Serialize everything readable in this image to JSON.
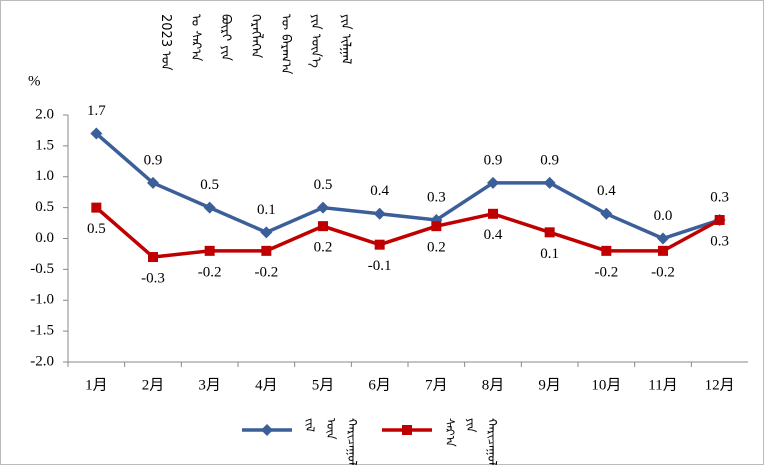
{
  "chart_data": {
    "type": "line",
    "title": "2023 ᠣᠨ ᠤ ᠰᠠᠷ᠎ᠠ ᠪᠦᠷᠢ ᠶᠢᠨ ᠬᠡᠷᠡᠭᠯᠡᠭᠡᠨ ᠦ ᠪᠠᠷᠠᠭ᠎ᠠ ᠶᠢᠨ ᠦᠨ᠎ᠡ ᠶᠢᠨ ᠢᠯᠭᠠᠯ",
    "y_label": "%",
    "categories": [
      "1月",
      "2月",
      "3月",
      "4月",
      "5月",
      "6月",
      "7月",
      "8月",
      "9月",
      "10月",
      "11月",
      "12月"
    ],
    "series": [
      {
        "name": "ᠵᠢᠯ ᠦᠨ ᠬᠠᠷᠢᠴᠠᠭᠤᠯᠠᠯᠲᠠ",
        "color": "#3b5f99",
        "values": [
          1.7,
          0.9,
          0.5,
          0.1,
          0.5,
          0.4,
          0.3,
          0.9,
          0.9,
          0.4,
          0.0,
          0.3
        ],
        "value_labels": [
          "1.7",
          "0.9",
          "0.5",
          "0.1",
          "0.5",
          "0.4",
          "0.3",
          "0.9",
          "0.9",
          "0.4",
          "0.0",
          "0.3"
        ]
      },
      {
        "name": "ᠰᠠᠷ᠎ᠠ ᠶᠢᠨ ᠬᠠᠷᠢᠴᠠᠭᠤᠯᠠᠯᠲᠠ",
        "color": "#c00000",
        "values": [
          0.5,
          -0.3,
          -0.2,
          -0.2,
          0.2,
          -0.1,
          0.2,
          0.4,
          0.1,
          -0.2,
          -0.2,
          0.3
        ],
        "value_labels": [
          "0.5",
          "-0.3",
          "-0.2",
          "-0.2",
          "0.2",
          "-0.1",
          "0.2",
          "0.4",
          "0.1",
          "-0.2",
          "-0.2",
          "0.3"
        ]
      }
    ],
    "ylim": [
      -2.0,
      2.0
    ],
    "yticks": [
      {
        "value": 2,
        "label": "2.0"
      },
      {
        "value": 1.5,
        "label": "1.5"
      },
      {
        "value": 1,
        "label": "1.0"
      },
      {
        "value": 0.5,
        "label": "0.5"
      },
      {
        "value": 0,
        "label": "0.0"
      },
      {
        "value": -0.5,
        "label": "-0.5"
      },
      {
        "value": -1,
        "label": "-1.0"
      },
      {
        "value": -1.5,
        "label": "-1.5"
      },
      {
        "value": -2,
        "label": "-2.0"
      }
    ],
    "grid": false
  }
}
